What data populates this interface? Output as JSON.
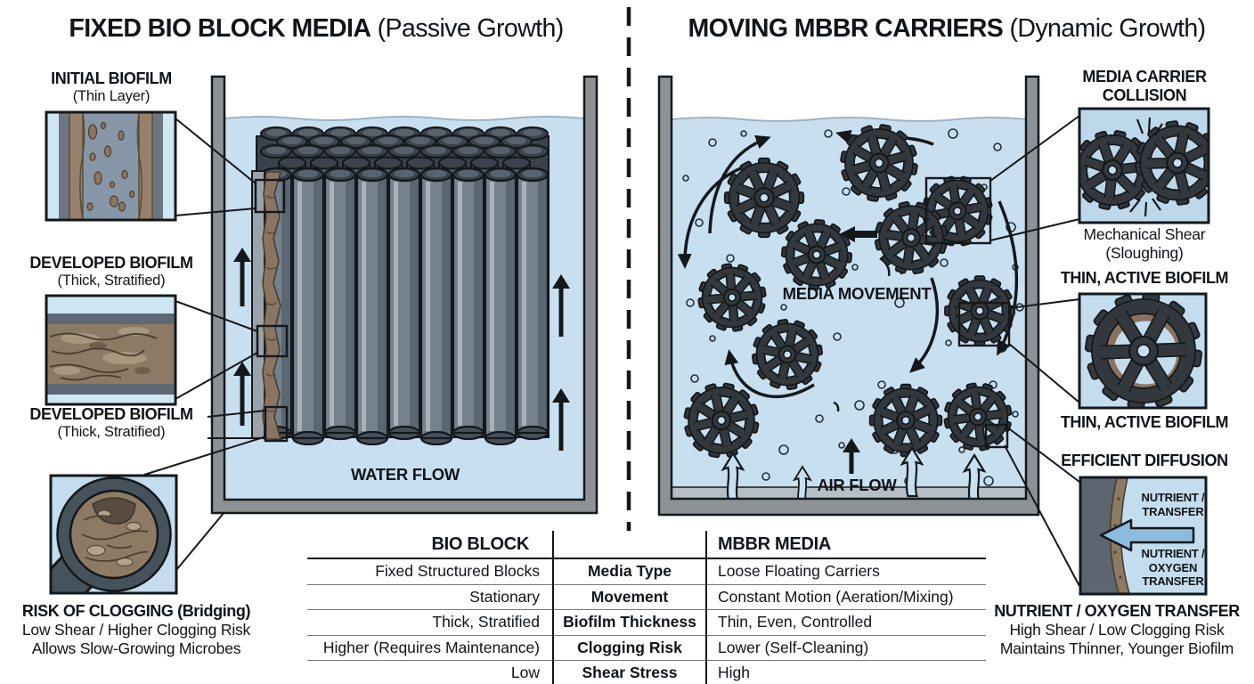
{
  "colors": {
    "water": "#c8dff0",
    "tank_wall": "#8d9296",
    "ink": "#14181b",
    "carrier_gear": "#32383d",
    "biofilm_brown": "#8a7562",
    "diffusion_arrow_blue": "#8cbbdd"
  },
  "left": {
    "title": "FIXED BIO BLOCK MEDIA",
    "subtitle": "(Passive Growth)",
    "initial": {
      "title": "INITIAL BIOFILM",
      "sub": "(Thin Layer)"
    },
    "dev1": {
      "title": "DEVELOPED BIOFILM",
      "sub": "(Thick, Stratified)"
    },
    "dev2": {
      "title": "DEVELOPED BIOFILM",
      "sub": "(Thick, Stratified)"
    },
    "clog": {
      "title": "RISK OF CLOGGING (Bridging)",
      "l1": "Low Shear / Higher Clogging Risk",
      "l2": "Allows Slow-Growing Microbes"
    },
    "water_flow": "WATER FLOW"
  },
  "right": {
    "title": "MOVING MBBR CARRIERS",
    "subtitle": "(Dynamic Growth)",
    "media_movement": "MEDIA MOVEMENT",
    "air_flow": "AIR FLOW",
    "collision": {
      "title": "MEDIA CARRIER COLLISION",
      "caption": "Mechanical Shear (Sloughing)"
    },
    "thin1": "THIN, ACTIVE BIOFILM",
    "thin2": "THIN, ACTIVE BIOFILM",
    "diffusion": {
      "title": "EFFICIENT DIFFUSION",
      "label_top": "NUTRIENT / TRANSFER",
      "label_bottom": "NUTRIENT / OXYGEN TRANSFER"
    },
    "transfer": {
      "title": "NUTRIENT / OXYGEN TRANSFER",
      "l1": "High Shear / Low Clogging Risk",
      "l2": "Maintains Thinner, Younger Biofilm"
    }
  },
  "table": {
    "headers": {
      "bio": "BIO BLOCK",
      "mbbr": "MBBR MEDIA"
    },
    "rows": [
      {
        "bio": "Fixed Structured Blocks",
        "attr": "Media Type",
        "mbbr": "Loose Floating Carriers"
      },
      {
        "bio": "Stationary",
        "attr": "Movement",
        "mbbr": "Constant Motion (Aeration/Mixing)"
      },
      {
        "bio": "Thick, Stratified",
        "attr": "Biofilm Thickness",
        "mbbr": "Thin, Even, Controlled"
      },
      {
        "bio": "Higher (Requires Maintenance)",
        "attr": "Clogging Risk",
        "mbbr": "Lower (Self-Cleaning)"
      },
      {
        "bio": "Low",
        "attr": "Shear Stress",
        "mbbr": "High"
      }
    ]
  }
}
